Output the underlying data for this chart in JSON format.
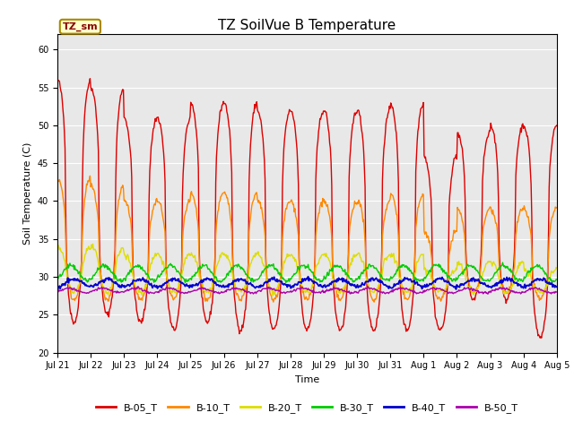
{
  "title": "TZ SoilVue B Temperature",
  "xlabel": "Time",
  "ylabel": "Soil Temperature (C)",
  "ylim": [
    20,
    62
  ],
  "yticks": [
    20,
    25,
    30,
    35,
    40,
    45,
    50,
    55,
    60
  ],
  "bg_color": "#e8e8e8",
  "annotation_text": "TZ_sm",
  "annotation_bg": "#ffffcc",
  "annotation_border": "#aa8800",
  "legend_entries": [
    "B-05_T",
    "B-10_T",
    "B-20_T",
    "B-30_T",
    "B-40_T",
    "B-50_T"
  ],
  "line_colors": [
    "#dd0000",
    "#ff8800",
    "#dddd00",
    "#00cc00",
    "#0000cc",
    "#aa00aa"
  ],
  "line_widths": [
    1.0,
    1.0,
    1.0,
    1.0,
    1.3,
    1.0
  ],
  "n_days": 15,
  "pts_per_day": 48,
  "xtick_labels": [
    "Jul 21",
    "Jul 22",
    "Jul 23",
    "Jul 24",
    "Jul 25",
    "Jul 26",
    "Jul 27",
    "Jul 28",
    "Jul 29",
    "Jul 30",
    "Jul 31",
    "Aug 1",
    "Aug 2",
    "Aug 3",
    "Aug 4",
    "Aug 5"
  ],
  "title_fontsize": 11,
  "axis_label_fontsize": 8,
  "tick_fontsize": 7,
  "legend_fontsize": 8,
  "figsize": [
    6.4,
    4.8
  ],
  "dpi": 100
}
